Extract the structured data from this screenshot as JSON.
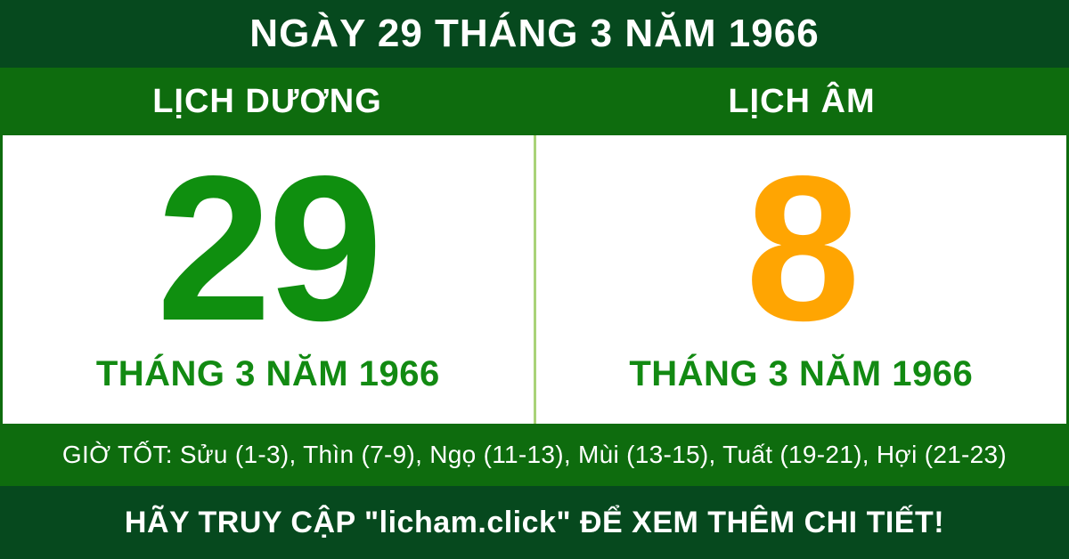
{
  "header": {
    "title": "NGÀY 29 THÁNG 3 NĂM 1966"
  },
  "calendars": {
    "solar": {
      "label": "LỊCH DƯƠNG",
      "day": "29",
      "subtitle": "THÁNG 3 NĂM 1966"
    },
    "lunar": {
      "label": "LỊCH ÂM",
      "day": "8",
      "subtitle": "THÁNG 3 NĂM 1966"
    }
  },
  "good_hours": {
    "text": "GIỜ TỐT: Sửu (1-3), Thìn (7-9), Ngọ (11-13), Mùi (13-15), Tuất (19-21), Hợi (21-23)"
  },
  "footer": {
    "text": "HÃY TRUY CẬP \"licham.click\" ĐỂ XEM THÊM CHI TIẾT!"
  },
  "colors": {
    "dark_green": "#06491e",
    "medium_green": "#0e6c0e",
    "solar_day": "#0f8f0f",
    "lunar_day": "#ffa502",
    "subtitle_green": "#128a12",
    "divider_light_green": "#a9d378",
    "text_white": "#ffffff"
  }
}
